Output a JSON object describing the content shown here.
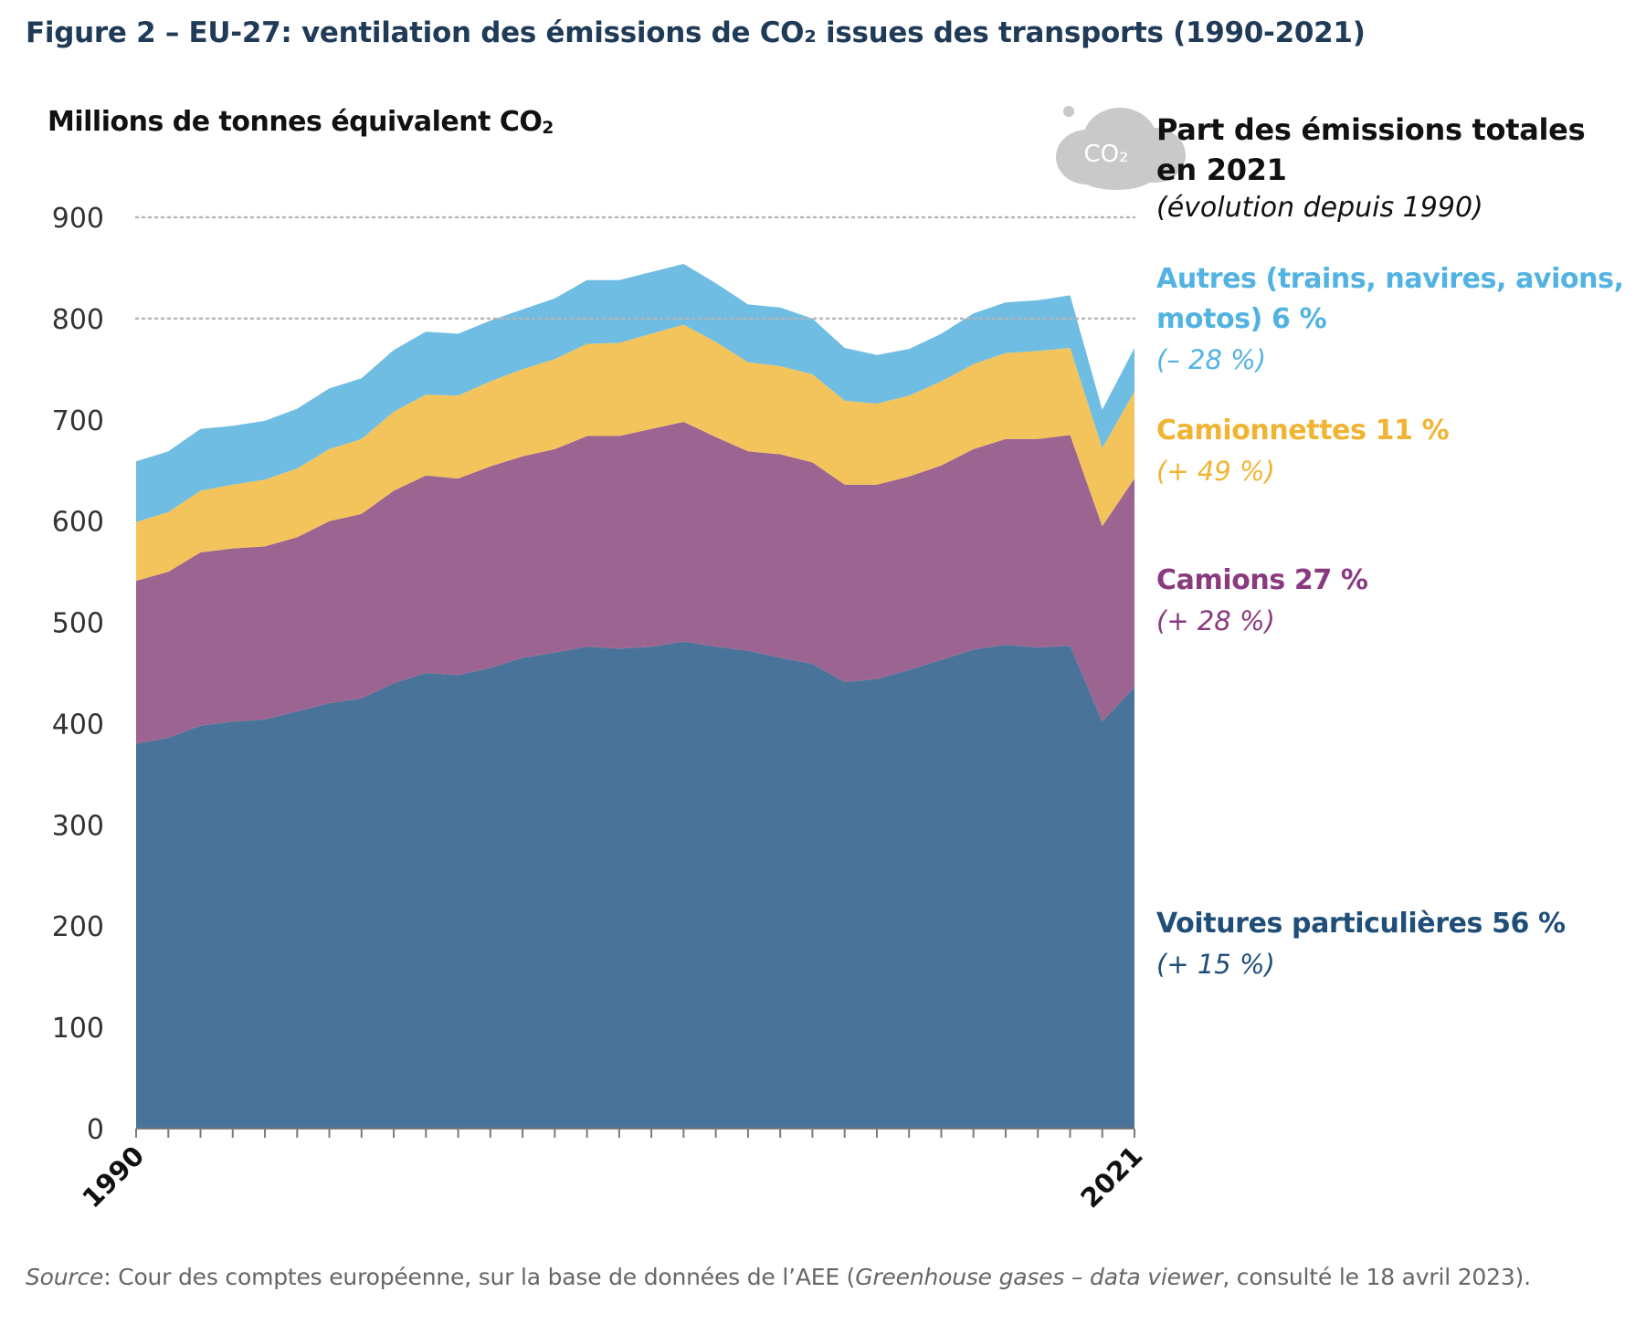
{
  "figure_title": "Figure 2 – EU-27: ventilation des émissions de CO₂ issues des transports (1990-2021)",
  "source": {
    "label": "Source",
    "text1": ": Cour des comptes européenne, sur la base de données de l’AEE (",
    "italic": "Greenhouse gases – data viewer",
    "text2": ", consulté le 18 avril 2023)."
  },
  "cloud_label": "CO₂",
  "share_title": "Part des émissions totales en 2021",
  "share_subtitle": "(évolution depuis 1990)",
  "chart_data": {
    "type": "area",
    "stacked": true,
    "ylabel": "Millions de tonnes équivalent CO₂",
    "ylim": [
      0,
      900
    ],
    "yticks": [
      0,
      100,
      200,
      300,
      400,
      500,
      600,
      700,
      800,
      900
    ],
    "x": [
      1990,
      1991,
      1992,
      1993,
      1994,
      1995,
      1996,
      1997,
      1998,
      1999,
      2000,
      2001,
      2002,
      2003,
      2004,
      2005,
      2006,
      2007,
      2008,
      2009,
      2010,
      2011,
      2012,
      2013,
      2014,
      2015,
      2016,
      2017,
      2018,
      2019,
      2020,
      2021
    ],
    "xtick_labels": [
      "1990",
      "2021"
    ],
    "grid": "horizontal dotted at 800 and 900",
    "series": [
      {
        "name": "Voitures particulières",
        "share": "56 %",
        "change": "(+ 15 %)",
        "color": "#4a7399",
        "label_color": "#1f4e79",
        "values": [
          380,
          386,
          398,
          402,
          404,
          412,
          420,
          425,
          440,
          450,
          448,
          455,
          465,
          470,
          476,
          474,
          476,
          481,
          476,
          472,
          465,
          459,
          441,
          444,
          453,
          463,
          473,
          478,
          475,
          477,
          402,
          436
        ]
      },
      {
        "name": "Camions",
        "share": "27 %",
        "change": "(+ 28 %)",
        "color": "#9c6591",
        "label_color": "#8a3a7e",
        "values": [
          161,
          164,
          171,
          171,
          171,
          172,
          180,
          182,
          190,
          195,
          194,
          199,
          199,
          201,
          208,
          210,
          215,
          217,
          207,
          197,
          201,
          199,
          195,
          192,
          191,
          192,
          198,
          203,
          206,
          208,
          193,
          206
        ]
      },
      {
        "name": "Camionnettes",
        "share": "11 %",
        "change": "(+ 49 %)",
        "color": "#f3c45c",
        "label_color": "#f0b432",
        "values": [
          58,
          59,
          61,
          63,
          66,
          68,
          71,
          74,
          78,
          80,
          82,
          84,
          86,
          89,
          91,
          92,
          94,
          96,
          94,
          88,
          87,
          87,
          83,
          80,
          80,
          83,
          84,
          85,
          87,
          86,
          77,
          86
        ]
      },
      {
        "name": "Autres (trains, navires, avions, motos)",
        "share": "6 %",
        "change": "(– 28 %)",
        "color": "#6fbde3",
        "label_color": "#52b3e2",
        "values": [
          60,
          60,
          61,
          58,
          58,
          59,
          60,
          60,
          61,
          62,
          61,
          60,
          59,
          60,
          63,
          62,
          61,
          60,
          58,
          57,
          58,
          55,
          52,
          48,
          46,
          47,
          50,
          50,
          50,
          52,
          38,
          43
        ]
      }
    ]
  }
}
